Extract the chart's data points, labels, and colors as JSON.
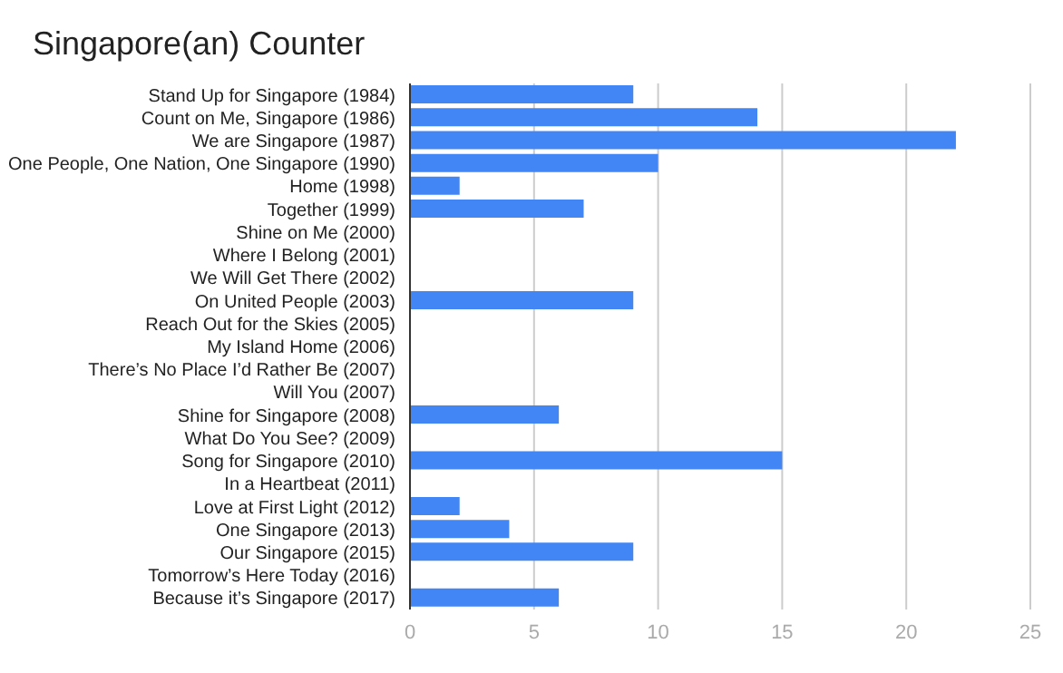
{
  "chart_data": {
    "type": "bar",
    "orientation": "horizontal",
    "title": "Singapore(an) Counter",
    "categories": [
      "Stand Up for Singapore (1984)",
      "Count on Me, Singapore (1986)",
      "We are Singapore (1987)",
      "One People, One Nation, One Singapore (1990)",
      "Home (1998)",
      "Together (1999)",
      "Shine on Me (2000)",
      "Where I Belong (2001)",
      "We Will Get There (2002)",
      "On United People (2003)",
      "Reach Out for the Skies (2005)",
      "My Island Home (2006)",
      "There’s No Place I’d Rather Be (2007)",
      "Will You (2007)",
      "Shine for Singapore (2008)",
      "What Do You See? (2009)",
      "Song for Singapore (2010)",
      "In a Heartbeat (2011)",
      "Love at First Light (2012)",
      "One Singapore (2013)",
      "Our Singapore (2015)",
      "Tomorrow’s Here Today (2016)",
      "Because it’s Singapore (2017)"
    ],
    "values": [
      9,
      14,
      22,
      10,
      2,
      7,
      0,
      0,
      0,
      9,
      0,
      0,
      0,
      0,
      6,
      0,
      15,
      0,
      2,
      4,
      9,
      0,
      6
    ],
    "color": "#4285f4",
    "xlim": [
      0,
      25
    ],
    "xticks": [
      0,
      5,
      10,
      15,
      20,
      25
    ],
    "grid": "x"
  }
}
